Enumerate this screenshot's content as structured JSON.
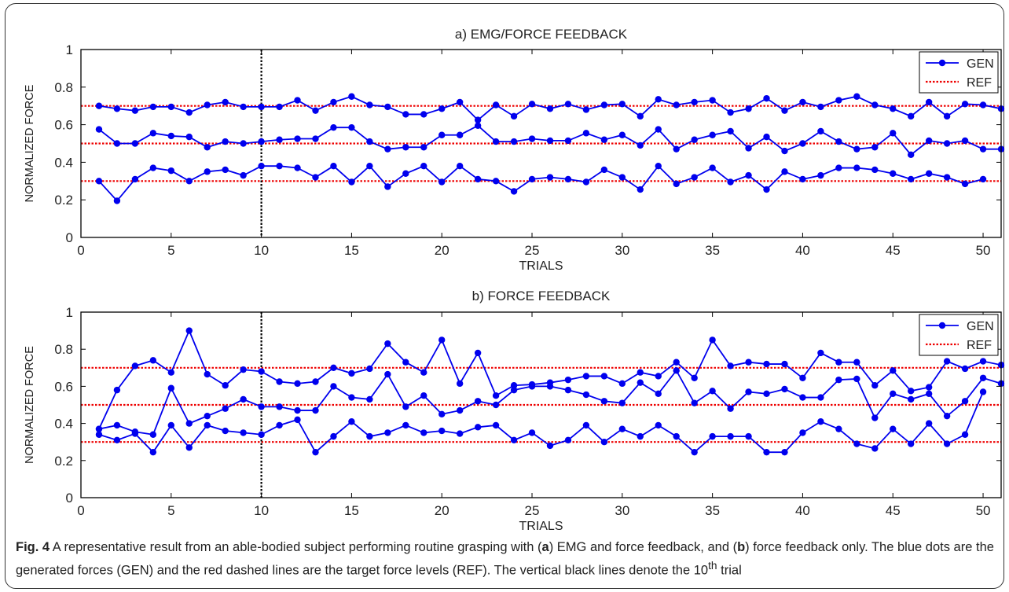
{
  "chart_data": [
    {
      "type": "line",
      "title": "a) EMG/FORCE FEEDBACK",
      "xlabel": "TRIALS",
      "ylabel": "NORMALIZED  FORCE",
      "xlim": [
        0,
        51
      ],
      "ylim": [
        0,
        1
      ],
      "xticks": [
        0,
        5,
        10,
        15,
        20,
        25,
        30,
        35,
        40,
        45,
        50
      ],
      "yticks": [
        0,
        0.2,
        0.4,
        0.6,
        0.8,
        1
      ],
      "ytick_labels": [
        "0",
        "0.2",
        "0.4",
        "0.6",
        "0.8",
        "1"
      ],
      "legend": {
        "position": "top-right",
        "entries": [
          "GEN",
          "REF"
        ]
      },
      "ref_levels": [
        0.3,
        0.5,
        0.7
      ],
      "vline_x": 10,
      "gen_color": "#0000ee",
      "ref_color": "#ee0000",
      "series": [
        {
          "values": [
            0.7,
            0.685,
            0.675,
            0.695,
            0.695,
            0.665,
            0.705,
            0.72,
            0.695,
            0.695,
            0.695,
            0.73,
            0.675,
            0.72,
            0.75,
            0.705,
            0.695,
            0.655,
            0.655,
            0.685,
            0.72,
            0.625,
            0.705,
            0.645,
            0.71,
            0.685,
            0.71,
            0.68,
            0.705,
            0.71,
            0.645,
            0.735,
            0.705,
            0.72,
            0.73,
            0.665,
            0.685,
            0.74,
            0.675,
            0.72,
            0.695,
            0.73,
            0.75,
            0.705,
            0.685,
            0.645,
            0.72,
            0.645,
            0.71,
            0.705,
            0.685
          ]
        },
        {
          "values": [
            0.575,
            0.5,
            0.5,
            0.555,
            0.54,
            0.535,
            0.48,
            0.51,
            0.5,
            0.51,
            0.52,
            0.525,
            0.525,
            0.585,
            0.585,
            0.51,
            0.47,
            0.48,
            0.48,
            0.545,
            0.545,
            0.595,
            0.51,
            0.51,
            0.525,
            0.515,
            0.515,
            0.555,
            0.52,
            0.545,
            0.49,
            0.575,
            0.47,
            0.52,
            0.545,
            0.565,
            0.475,
            0.535,
            0.46,
            0.5,
            0.565,
            0.51,
            0.47,
            0.48,
            0.555,
            0.44,
            0.515,
            0.5,
            0.515,
            0.47,
            0.47
          ]
        },
        {
          "values": [
            0.3,
            0.195,
            0.31,
            0.37,
            0.355,
            0.3,
            0.35,
            0.36,
            0.33,
            0.38,
            0.38,
            0.37,
            0.32,
            0.38,
            0.295,
            0.38,
            0.27,
            0.34,
            0.38,
            0.295,
            0.38,
            0.31,
            0.3,
            0.245,
            0.31,
            0.32,
            0.31,
            0.295,
            0.36,
            0.32,
            0.255,
            0.38,
            0.285,
            0.32,
            0.37,
            0.295,
            0.33,
            0.255,
            0.35,
            0.31,
            0.33,
            0.37,
            0.37,
            0.36,
            0.34,
            0.31,
            0.34,
            0.32,
            0.285,
            0.31
          ]
        }
      ]
    },
    {
      "type": "line",
      "title": "b) FORCE FEEDBACK",
      "xlabel": "TRIALS",
      "ylabel": "NORMALIZED  FORCE",
      "xlim": [
        0,
        51
      ],
      "ylim": [
        0,
        1
      ],
      "xticks": [
        0,
        5,
        10,
        15,
        20,
        25,
        30,
        35,
        40,
        45,
        50
      ],
      "yticks": [
        0,
        0.2,
        0.4,
        0.6,
        0.8,
        1
      ],
      "ytick_labels": [
        "0",
        "0.2",
        "0.4",
        "0.6",
        "0.8",
        "1"
      ],
      "legend": {
        "position": "top-right",
        "entries": [
          "GEN",
          "REF"
        ]
      },
      "ref_levels": [
        0.3,
        0.5,
        0.7
      ],
      "vline_x": 10,
      "gen_color": "#0000ee",
      "ref_color": "#ee0000",
      "series": [
        {
          "values": [
            0.37,
            0.58,
            0.71,
            0.74,
            0.675,
            0.9,
            0.665,
            0.605,
            0.69,
            0.68,
            0.625,
            0.615,
            0.625,
            0.7,
            0.67,
            0.695,
            0.83,
            0.73,
            0.675,
            0.85,
            0.615,
            0.78,
            0.55,
            0.605,
            0.61,
            0.62,
            0.635,
            0.655,
            0.655,
            0.615,
            0.675,
            0.655,
            0.73,
            0.645,
            0.85,
            0.71,
            0.73,
            0.72,
            0.72,
            0.645,
            0.78,
            0.73,
            0.73,
            0.605,
            0.685,
            0.575,
            0.595,
            0.735,
            0.695,
            0.735,
            0.715
          ]
        },
        {
          "values": [
            0.37,
            0.39,
            0.355,
            0.34,
            0.59,
            0.4,
            0.44,
            0.48,
            0.53,
            0.49,
            0.49,
            0.47,
            0.47,
            0.6,
            0.54,
            0.53,
            0.665,
            0.49,
            0.55,
            0.45,
            0.47,
            0.52,
            0.5,
            0.58,
            0.6,
            0.6,
            0.58,
            0.555,
            0.52,
            0.51,
            0.62,
            0.56,
            0.685,
            0.51,
            0.575,
            0.48,
            0.57,
            0.56,
            0.585,
            0.54,
            0.54,
            0.635,
            0.64,
            0.43,
            0.56,
            0.53,
            0.56,
            0.44,
            0.52,
            0.645,
            0.615
          ]
        },
        {
          "values": [
            0.34,
            0.31,
            0.345,
            0.245,
            0.39,
            0.27,
            0.39,
            0.36,
            0.35,
            0.34,
            0.39,
            0.42,
            0.245,
            0.33,
            0.41,
            0.33,
            0.35,
            0.39,
            0.35,
            0.36,
            0.345,
            0.38,
            0.39,
            0.31,
            0.35,
            0.28,
            0.31,
            0.39,
            0.3,
            0.37,
            0.33,
            0.39,
            0.33,
            0.245,
            0.33,
            0.33,
            0.33,
            0.245,
            0.245,
            0.35,
            0.41,
            0.37,
            0.29,
            0.265,
            0.37,
            0.29,
            0.4,
            0.29,
            0.34,
            0.57
          ]
        }
      ]
    }
  ],
  "caption": {
    "fig_label": "Fig. 4",
    "t1": " A representative result from an able-bodied subject performing routine grasping with (",
    "b1": "a",
    "t2": ") EMG and force feedback, and (",
    "b2": "b",
    "t3": ") force feedback only. The blue dots are the generated forces (GEN) and the red dashed lines are the target force levels (REF). The vertical black lines denote the 10",
    "sup": "th",
    "t4": " trial"
  }
}
